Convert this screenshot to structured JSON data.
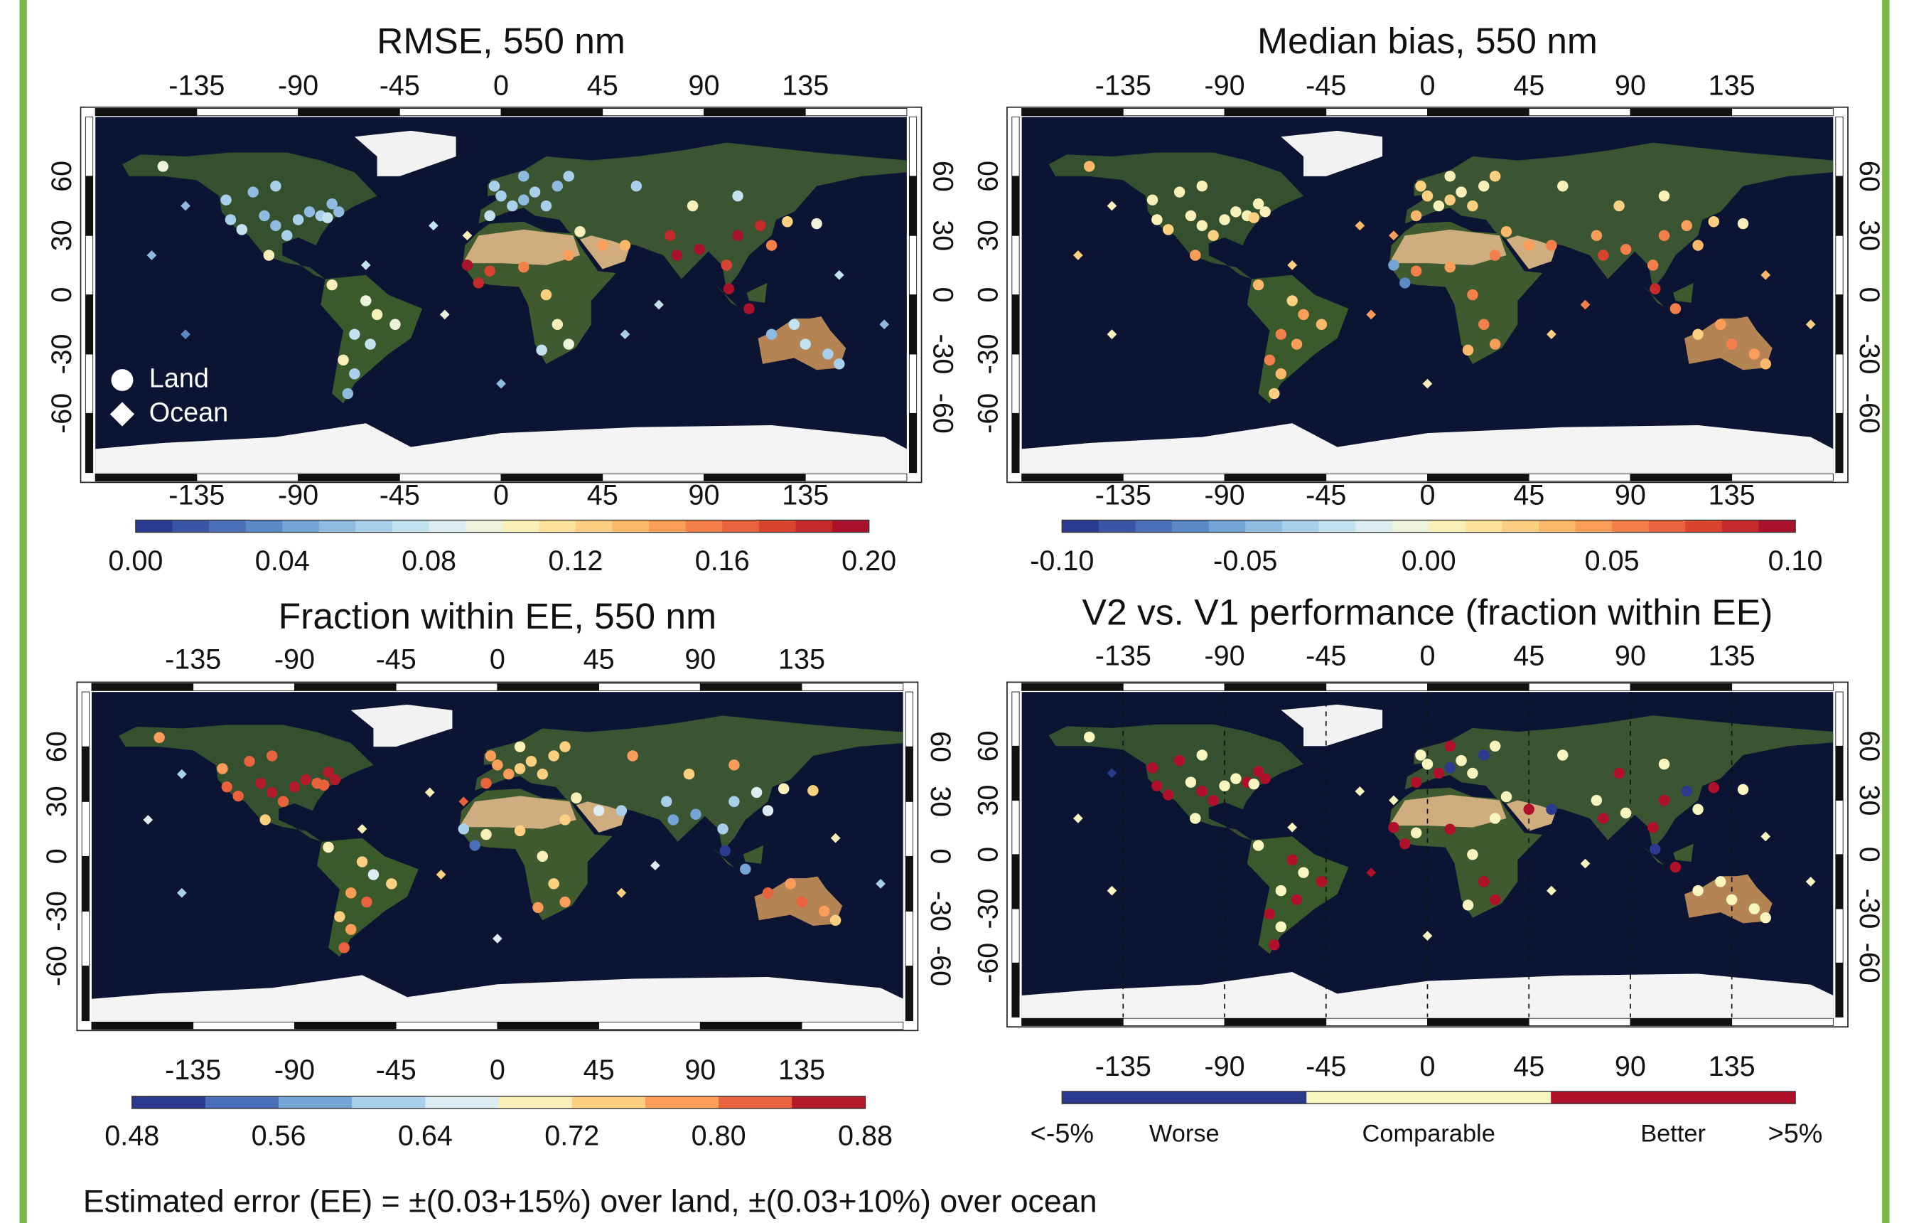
{
  "footnote": "Estimated error (EE) = ±(0.03+15%) over land, ±(0.03+10%) over ocean",
  "sites": {
    "land": {
      "lon": [
        -120,
        -115,
        -105,
        -100,
        -95,
        -90,
        -85,
        -80,
        -77,
        -72,
        -110,
        -100,
        -75,
        -122,
        -150,
        -103,
        -75,
        -60,
        -55,
        -47,
        -65,
        -58,
        -70,
        -65,
        -68,
        0,
        5,
        10,
        15,
        -5,
        20,
        25,
        -3,
        10,
        30,
        -15,
        -5,
        10,
        30,
        -10,
        20,
        25,
        30,
        18,
        35,
        45,
        55,
        75,
        78,
        88,
        100,
        105,
        115,
        120,
        127,
        140,
        105,
        85,
        60,
        101,
        110,
        130,
        135,
        145,
        150,
        120
      ],
      "lat": [
        38,
        33,
        40,
        35,
        30,
        38,
        42,
        40,
        39,
        42,
        52,
        55,
        46,
        48,
        65,
        20,
        5,
        -3,
        -10,
        -15,
        -20,
        -25,
        -33,
        -40,
        -50,
        50,
        45,
        48,
        52,
        40,
        45,
        55,
        55,
        60,
        60,
        15,
        12,
        14,
        20,
        6,
        0,
        -15,
        -25,
        -28,
        32,
        25,
        25,
        30,
        20,
        23,
        15,
        30,
        35,
        25,
        37,
        36,
        50,
        45,
        55,
        3,
        -7,
        -15,
        -25,
        -30,
        -35,
        -20
      ]
    },
    "ocean": {
      "lon": [
        -155,
        -140,
        -30,
        -25,
        55,
        70,
        -140,
        170,
        -15,
        150,
        -60,
        0
      ],
      "lat": [
        20,
        -20,
        35,
        -10,
        -20,
        -5,
        45,
        -15,
        30,
        10,
        15,
        -45
      ]
    }
  },
  "panels": [
    {
      "title": "RMSE, 550 nm",
      "xlim": [
        -180,
        180
      ],
      "ylim": [
        -90,
        90
      ],
      "xticks": [
        -135,
        -90,
        -45,
        0,
        45,
        90,
        135
      ],
      "yticks": [
        -60,
        -30,
        0,
        30,
        60
      ],
      "grid": false,
      "legend": [
        {
          "label": "Land",
          "marker": "circle"
        },
        {
          "label": "Ocean",
          "marker": "diamond"
        }
      ],
      "colorbar": {
        "range": [
          0,
          0.2
        ],
        "colors": [
          "#2b3a8f",
          "#3a55a3",
          "#4a6fb8",
          "#5b89c6",
          "#74a5d4",
          "#8fbbe0",
          "#a9d0ea",
          "#c3e2f0",
          "#dcecf0",
          "#eef3dc",
          "#f8f0b8",
          "#fce29a",
          "#fdcf80",
          "#fcb86a",
          "#f99d58",
          "#f3804a",
          "#e8623d",
          "#d94430",
          "#c42a2a",
          "#a8122a"
        ],
        "ticks": [
          {
            "value": 0,
            "label": "0.00"
          },
          0.04,
          0.08,
          0.12,
          0.16,
          {
            "value": 0.2,
            "label": "0.20"
          }
        ]
      },
      "land_values": [
        0.06,
        0.07,
        0.05,
        0.05,
        0.06,
        0.06,
        0.05,
        0.06,
        0.07,
        0.05,
        0.05,
        0.06,
        0.05,
        0.06,
        0.09,
        0.1,
        0.11,
        0.09,
        0.1,
        0.09,
        0.08,
        0.07,
        0.1,
        0.06,
        0.05,
        0.06,
        0.06,
        0.05,
        0.06,
        0.07,
        0.06,
        0.05,
        0.06,
        0.05,
        0.06,
        0.19,
        0.17,
        0.16,
        0.15,
        0.18,
        0.12,
        0.1,
        0.09,
        0.07,
        0.11,
        0.14,
        0.13,
        0.18,
        0.19,
        0.2,
        0.17,
        0.19,
        0.18,
        0.16,
        0.12,
        0.09,
        0.07,
        0.1,
        0.06,
        0.2,
        0.19,
        0.08,
        0.07,
        0.06,
        0.06,
        0.05
      ],
      "ocean_values": [
        0.05,
        0.04,
        0.07,
        0.09,
        0.06,
        0.08,
        0.05,
        0.05,
        0.11,
        0.07,
        0.08,
        0.05
      ]
    },
    {
      "title": "Median bias, 550 nm",
      "xlim": [
        -180,
        180
      ],
      "ylim": [
        -90,
        90
      ],
      "xticks": [
        -135,
        -90,
        -45,
        0,
        45,
        90,
        135
      ],
      "yticks": [
        -60,
        -30,
        0,
        30,
        60
      ],
      "grid": false,
      "colorbar": {
        "range": [
          -0.1,
          0.1
        ],
        "colors": [
          "#2b3a8f",
          "#3a55a3",
          "#4a6fb8",
          "#5b89c6",
          "#74a5d4",
          "#8fbbe0",
          "#a9d0ea",
          "#c3e2f0",
          "#dcecf0",
          "#eef3dc",
          "#f8f0b8",
          "#fce29a",
          "#fdcf80",
          "#fcb86a",
          "#f99d58",
          "#f3804a",
          "#e8623d",
          "#d94430",
          "#c42a2a",
          "#a8122a"
        ],
        "ticks": [
          {
            "value": -0.1,
            "label": "-0.10"
          },
          -0.05,
          {
            "value": 0,
            "label": "0.00"
          },
          0.05,
          {
            "value": 0.1,
            "label": "0.10"
          }
        ]
      },
      "land_values": [
        0.01,
        0.02,
        0.0,
        0.01,
        0.02,
        0.01,
        0.0,
        0.01,
        0.02,
        0.01,
        0.0,
        0.01,
        0.0,
        0.01,
        0.03,
        0.04,
        0.03,
        0.02,
        0.04,
        0.03,
        0.05,
        0.04,
        0.06,
        0.03,
        0.02,
        0.02,
        0.01,
        0.02,
        0.01,
        0.03,
        0.02,
        0.01,
        0.02,
        0.01,
        0.02,
        -0.06,
        0.05,
        0.04,
        0.05,
        -0.07,
        0.06,
        0.05,
        0.04,
        0.03,
        0.03,
        0.04,
        0.05,
        0.04,
        0.07,
        0.06,
        0.05,
        0.06,
        0.04,
        0.03,
        0.02,
        0.01,
        0.0,
        0.02,
        0.01,
        0.08,
        0.06,
        0.04,
        0.05,
        0.04,
        0.03,
        0.02
      ],
      "ocean_values": [
        0.02,
        0.01,
        0.03,
        0.04,
        0.02,
        0.05,
        0.01,
        0.02,
        0.04,
        0.03,
        0.02,
        0.01
      ]
    },
    {
      "title": "Fraction within EE, 550 nm",
      "xlim": [
        -180,
        180
      ],
      "ylim": [
        -90,
        90
      ],
      "xticks": [
        -135,
        -90,
        -45,
        0,
        45,
        90,
        135
      ],
      "yticks": [
        -60,
        -30,
        0,
        30,
        60
      ],
      "grid": false,
      "colorbar": {
        "range": [
          0.48,
          0.88
        ],
        "colors": [
          "#2b3a8f",
          "#4a6fb8",
          "#74a5d4",
          "#a9d0ea",
          "#dcecf0",
          "#f8f0b8",
          "#fdcf80",
          "#f99d58",
          "#e8623d",
          "#b31a2a"
        ],
        "ticks": [
          0.48,
          0.56,
          0.64,
          0.72,
          {
            "value": 0.8,
            "label": "0.80"
          },
          0.88
        ]
      },
      "land_values": [
        0.82,
        0.8,
        0.84,
        0.85,
        0.83,
        0.86,
        0.84,
        0.82,
        0.8,
        0.85,
        0.83,
        0.81,
        0.84,
        0.79,
        0.78,
        0.74,
        0.7,
        0.72,
        0.66,
        0.74,
        0.78,
        0.8,
        0.72,
        0.76,
        0.82,
        0.76,
        0.78,
        0.74,
        0.72,
        0.8,
        0.75,
        0.73,
        0.77,
        0.7,
        0.74,
        0.6,
        0.7,
        0.72,
        0.74,
        0.52,
        0.68,
        0.74,
        0.76,
        0.78,
        0.7,
        0.66,
        0.62,
        0.6,
        0.58,
        0.56,
        0.62,
        0.6,
        0.64,
        0.66,
        0.7,
        0.74,
        0.76,
        0.72,
        0.78,
        0.5,
        0.56,
        0.78,
        0.8,
        0.76,
        0.74,
        0.82
      ],
      "ocean_values": [
        0.64,
        0.62,
        0.7,
        0.74,
        0.72,
        0.66,
        0.62,
        0.6,
        0.82,
        0.68,
        0.7,
        0.66
      ]
    },
    {
      "title": "V2 vs. V1 performance (fraction within EE)",
      "xlim": [
        -180,
        180
      ],
      "ylim": [
        -90,
        90
      ],
      "xticks": [
        -135,
        -90,
        -45,
        0,
        45,
        90,
        135
      ],
      "yticks": [
        -60,
        -30,
        0,
        30,
        60
      ],
      "grid": true,
      "colorbar": {
        "colors": [
          "#2b3a8f",
          "#f8f5bf",
          "#b0102a"
        ],
        "segment_labels": [
          "Worse",
          "Comparable",
          "Better"
        ],
        "end_labels": [
          {
            "value": -5,
            "label": "<-5%"
          },
          {
            "value": 5,
            "label": ">5%"
          }
        ]
      },
      "land_values": [
        8,
        7,
        2,
        9,
        6,
        0,
        1,
        8,
        -1,
        7,
        9,
        2,
        6,
        8,
        1,
        0,
        2,
        7,
        1,
        9,
        0,
        6,
        8,
        1,
        7,
        1,
        7,
        -6,
        2,
        8,
        0,
        -7,
        3,
        9,
        2,
        8,
        1,
        7,
        0,
        9,
        2,
        8,
        6,
        1,
        2,
        8,
        -6,
        1,
        9,
        0,
        7,
        8,
        -7,
        2,
        9,
        1,
        0,
        6,
        2,
        -8,
        8,
        1,
        0,
        2,
        1,
        0
      ],
      "ocean_values": [
        1,
        0,
        2,
        7,
        1,
        0,
        -6,
        1,
        2,
        0,
        1,
        0
      ]
    }
  ]
}
